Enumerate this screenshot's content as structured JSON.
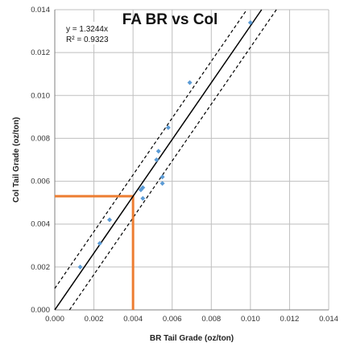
{
  "chart_data": {
    "type": "scatter",
    "title": "FA BR vs Col",
    "xlabel": "BR Tail Grade (oz/ton)",
    "ylabel": "Col Tail Grade (oz/ton)",
    "xlim": [
      0,
      0.014
    ],
    "ylim": [
      0,
      0.014
    ],
    "x_ticks": [
      0,
      0.002,
      0.004,
      0.006,
      0.008,
      0.01,
      0.012,
      0.014
    ],
    "y_ticks": [
      0,
      0.002,
      0.004,
      0.006,
      0.008,
      0.01,
      0.012,
      0.014
    ],
    "x_tick_labels": [
      "0.000",
      "0.002",
      "0.004",
      "0.006",
      "0.008",
      "0.010",
      "0.012",
      "0.014"
    ],
    "y_tick_labels": [
      "0.000",
      "0.002",
      "0.004",
      "0.006",
      "0.008",
      "0.010",
      "0.012",
      "0.014"
    ],
    "grid": true,
    "legend": "none",
    "series": [
      {
        "color": "#5b9bd5",
        "x": [
          0.0013,
          0.0023,
          0.0028,
          0.0044,
          0.0045,
          0.0045,
          0.0052,
          0.0053,
          0.0055,
          0.0055,
          0.0058,
          0.0069,
          0.01
        ],
        "y": [
          0.002,
          0.0031,
          0.0042,
          0.0056,
          0.0057,
          0.0052,
          0.007,
          0.0074,
          0.0062,
          0.0059,
          0.0085,
          0.0106,
          0.0134
        ]
      }
    ],
    "trendline": {
      "slope": 1.3244,
      "color": "#000000",
      "equation_text": "y = 1.3244x",
      "r2_text": "R² = 0.9323"
    },
    "confidence_band": {
      "offset": 0.001,
      "style": "dashed",
      "color": "#000000"
    },
    "reference_lines": {
      "color": "#ed7d31",
      "x": 0.004,
      "y": 0.0053
    }
  }
}
